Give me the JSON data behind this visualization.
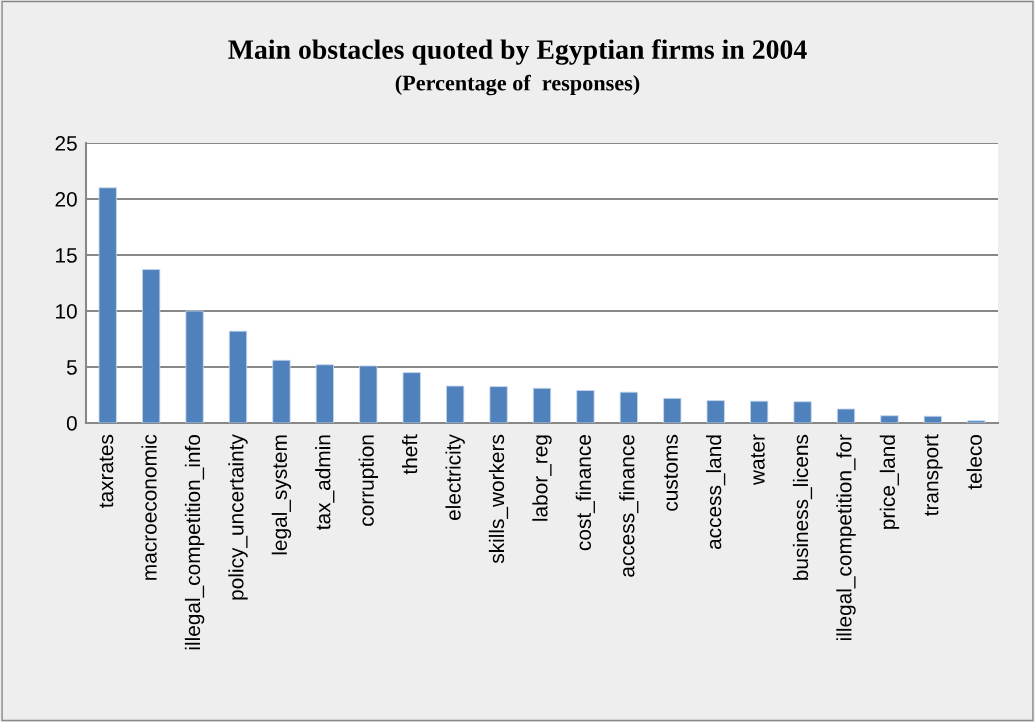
{
  "chart_data": {
    "type": "bar",
    "title": "Main obstacles quoted by Egyptian firms in 2004",
    "subtitle": "(Percentage of  responses)",
    "categories": [
      "taxrates",
      "macroeconomic",
      "illegal_competition_info",
      "policy_uncertainty",
      "legal_system",
      "tax_admin",
      "corruption",
      "theft",
      "electricity",
      "skills_workers",
      "labor_reg",
      "cost_finance",
      "access_finance",
      "customs",
      "access_land",
      "water",
      "business_licens",
      "illegal_competition_for",
      "price_land",
      "transport",
      "teleco"
    ],
    "values": [
      21.0,
      13.7,
      10.0,
      8.2,
      5.6,
      5.2,
      5.1,
      4.5,
      3.3,
      3.25,
      3.1,
      2.9,
      2.75,
      2.2,
      2.0,
      1.95,
      1.9,
      1.25,
      0.65,
      0.6,
      0.2
    ],
    "color": "#4f81bd",
    "ylim": [
      0,
      25
    ],
    "yticks": [
      0,
      5,
      10,
      15,
      20,
      25
    ],
    "grid": "y",
    "legend": false
  }
}
